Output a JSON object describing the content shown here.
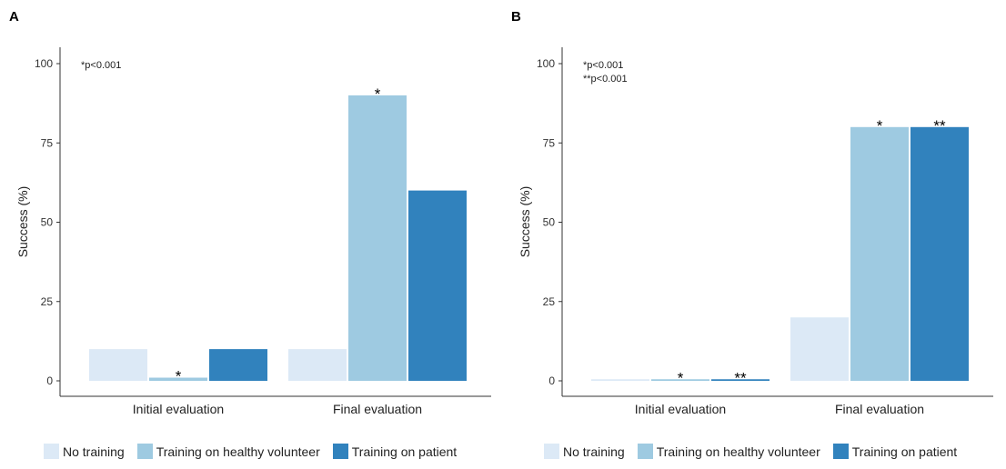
{
  "panels": [
    {
      "letter": "A",
      "note_lines": [
        "*p<0.001"
      ],
      "chart_data": {
        "type": "bar",
        "categories": [
          "Initial evaluation",
          "Final evaluation"
        ],
        "ylabel": "Success (%)",
        "ylim": [
          0,
          100
        ],
        "yticks": [
          0,
          25,
          50,
          75,
          100
        ],
        "series": [
          {
            "name": "No training",
            "values": [
              10,
              10
            ],
            "markers": [
              "",
              ""
            ]
          },
          {
            "name": "Training on healthy volunteer",
            "values": [
              1,
              90
            ],
            "markers": [
              "*",
              "*"
            ]
          },
          {
            "name": "Training on patient",
            "values": [
              10,
              60
            ],
            "markers": [
              "",
              ""
            ]
          }
        ]
      }
    },
    {
      "letter": "B",
      "note_lines": [
        "*p<0.001",
        "**p<0.001"
      ],
      "chart_data": {
        "type": "bar",
        "categories": [
          "Initial evaluation",
          "Final evaluation"
        ],
        "ylabel": "Success (%)",
        "ylim": [
          0,
          100
        ],
        "yticks": [
          0,
          25,
          50,
          75,
          100
        ],
        "series": [
          {
            "name": "No training",
            "values": [
              0.5,
              20
            ],
            "markers": [
              "",
              ""
            ]
          },
          {
            "name": "Training on healthy volunteer",
            "values": [
              0.5,
              80
            ],
            "markers": [
              "*",
              "*"
            ]
          },
          {
            "name": "Training on patient",
            "values": [
              0.5,
              80
            ],
            "markers": [
              "**",
              "**"
            ]
          }
        ]
      }
    }
  ],
  "colors": [
    "#dce9f6",
    "#9ecae1",
    "#3182bd"
  ]
}
